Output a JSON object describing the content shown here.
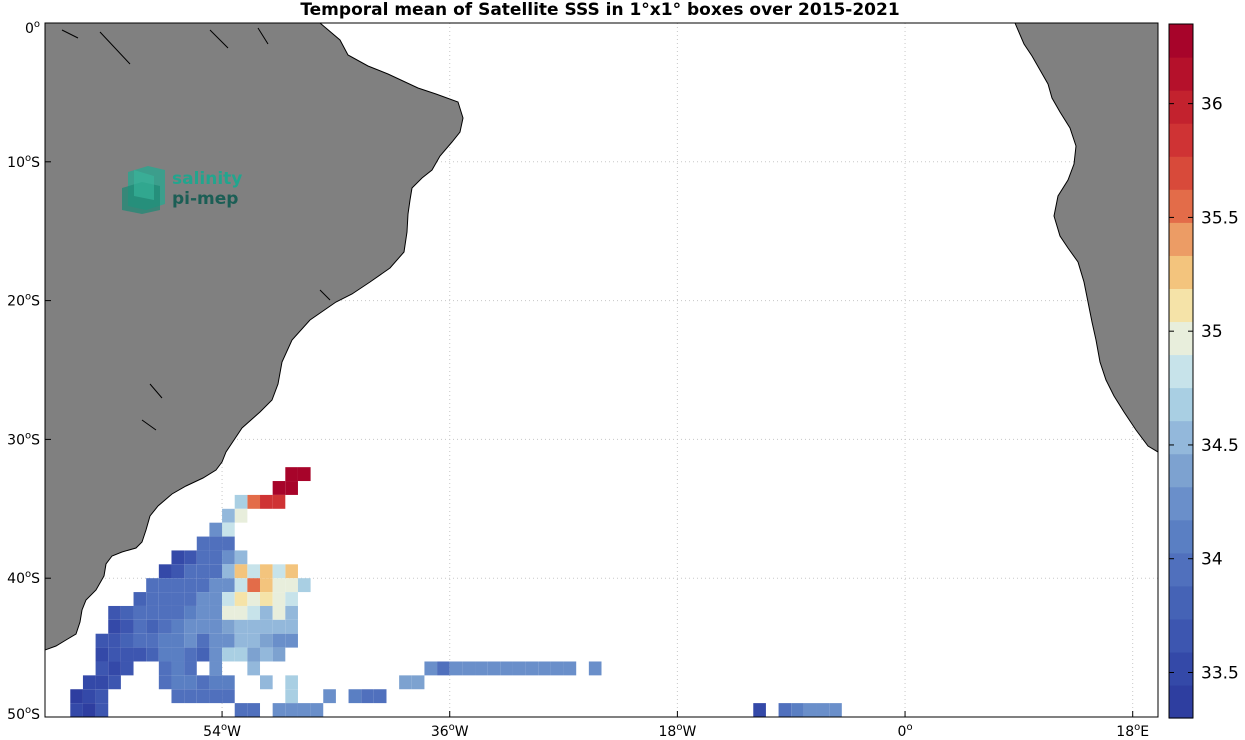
{
  "title": "Temporal mean of Satellite SSS in 1°x1° boxes over 2015-2021",
  "logo": {
    "line1": "salinity",
    "line2": "pi-mep",
    "color1": "#22a58e",
    "color2": "#1b5e55"
  },
  "colors": {
    "land": "#808080",
    "coast": "#000000",
    "ocean": "#ffffff",
    "grid": "#c8c8c8"
  },
  "axes": {
    "x_ticks": [
      {
        "lon": -54,
        "label": "54",
        "suffix": "W"
      },
      {
        "lon": -36,
        "label": "36",
        "suffix": "W"
      },
      {
        "lon": -18,
        "label": "18",
        "suffix": "W"
      },
      {
        "lon": 0,
        "label": "0",
        "suffix": ""
      },
      {
        "lon": 18,
        "label": "18",
        "suffix": "E"
      }
    ],
    "y_ticks": [
      {
        "lat": 0,
        "label": "0",
        "suffix": ""
      },
      {
        "lat": -10,
        "label": "10",
        "suffix": "S"
      },
      {
        "lat": -20,
        "label": "20",
        "suffix": "S"
      },
      {
        "lat": -30,
        "label": "30",
        "suffix": "S"
      },
      {
        "lat": -40,
        "label": "40",
        "suffix": "S"
      },
      {
        "lat": -50,
        "label": "50",
        "suffix": "S"
      }
    ],
    "lon_range": [
      -68,
      20
    ],
    "lat_range": [
      -50,
      0
    ]
  },
  "colorbar": {
    "min": 33.3,
    "max": 36.35,
    "ticks": [
      33.5,
      34,
      34.5,
      35,
      35.5,
      36
    ],
    "tick_labels": [
      "33.5",
      "34",
      "34.5",
      "35",
      "35.5",
      "36"
    ],
    "colors": [
      "#2e3ea0",
      "#3449a8",
      "#3d56b0",
      "#4563b6",
      "#5070bd",
      "#5a7fc3",
      "#6a8fca",
      "#7da2d0",
      "#93b8db",
      "#a9cfe3",
      "#c7e3ea",
      "#e8eedc",
      "#f5e3a8",
      "#f3c47d",
      "#ec9c65",
      "#e36c49",
      "#d84a3a",
      "#cf3334",
      "#c3222e",
      "#b5112b",
      "#a7042a"
    ]
  },
  "chart_data": {
    "type": "heatmap",
    "title": "Temporal mean of Satellite SSS in 1°x1° boxes over 2015-2021",
    "variable": "SSS",
    "resolution_deg": 1,
    "period": "2015-2021",
    "cells": [
      [
        -48,
        -32,
        36.3
      ],
      [
        -49,
        -32,
        36.3
      ],
      [
        -49,
        -33,
        36.3
      ],
      [
        -50,
        -33,
        36.3
      ],
      [
        -50,
        -34,
        35.8
      ],
      [
        -51,
        -34,
        35.8
      ],
      [
        -52,
        -34,
        35.6
      ],
      [
        -53,
        -34,
        34.7
      ],
      [
        -53,
        -35,
        35.0
      ],
      [
        -54,
        -35,
        34.5
      ],
      [
        -54,
        -36,
        34.8
      ],
      [
        -55,
        -36,
        34.2
      ],
      [
        -54,
        -37,
        34.0
      ],
      [
        -55,
        -37,
        34.0
      ],
      [
        -56,
        -37,
        33.9
      ],
      [
        -55,
        -38,
        34.0
      ],
      [
        -56,
        -38,
        33.9
      ],
      [
        -57,
        -38,
        33.6
      ],
      [
        -58,
        -38,
        33.5
      ],
      [
        -53,
        -38,
        34.6
      ],
      [
        -54,
        -38,
        34.3
      ],
      [
        -54,
        -39,
        34.6
      ],
      [
        -55,
        -39,
        34.0
      ],
      [
        -56,
        -39,
        34.0
      ],
      [
        -57,
        -39,
        33.9
      ],
      [
        -58,
        -39,
        33.6
      ],
      [
        -59,
        -39,
        33.5
      ],
      [
        -53,
        -39,
        35.2
      ],
      [
        -51,
        -39,
        35.2
      ],
      [
        -49,
        -39,
        35.2
      ],
      [
        -52,
        -39,
        34.8
      ],
      [
        -50,
        -39,
        34.8
      ],
      [
        -60,
        -40,
        34.0
      ],
      [
        -59,
        -40,
        33.9
      ],
      [
        -58,
        -40,
        33.9
      ],
      [
        -57,
        -40,
        33.9
      ],
      [
        -56,
        -40,
        34.0
      ],
      [
        -55,
        -40,
        34.2
      ],
      [
        -54,
        -40,
        34.3
      ],
      [
        -53,
        -40,
        34.8
      ],
      [
        -52,
        -40,
        35.6
      ],
      [
        -51,
        -40,
        35.2
      ],
      [
        -50,
        -40,
        34.9
      ],
      [
        -49,
        -40,
        34.9
      ],
      [
        -48,
        -40,
        34.7
      ],
      [
        -61,
        -41,
        33.8
      ],
      [
        -60,
        -41,
        33.9
      ],
      [
        -59,
        -41,
        34.0
      ],
      [
        -58,
        -41,
        33.9
      ],
      [
        -57,
        -41,
        34.0
      ],
      [
        -56,
        -41,
        34.2
      ],
      [
        -55,
        -41,
        34.3
      ],
      [
        -54,
        -41,
        34.8
      ],
      [
        -53,
        -41,
        35.1
      ],
      [
        -52,
        -41,
        35.0
      ],
      [
        -51,
        -41,
        35.1
      ],
      [
        -50,
        -41,
        34.9
      ],
      [
        -49,
        -41,
        34.8
      ],
      [
        -63,
        -42,
        33.7
      ],
      [
        -62,
        -42,
        33.8
      ],
      [
        -61,
        -42,
        33.9
      ],
      [
        -60,
        -42,
        34.0
      ],
      [
        -59,
        -42,
        34.0
      ],
      [
        -58,
        -42,
        34.0
      ],
      [
        -57,
        -42,
        34.1
      ],
      [
        -56,
        -42,
        34.2
      ],
      [
        -55,
        -42,
        34.3
      ],
      [
        -54,
        -42,
        35.0
      ],
      [
        -53,
        -42,
        35.0
      ],
      [
        -52,
        -42,
        34.8
      ],
      [
        -51,
        -42,
        34.6
      ],
      [
        -50,
        -42,
        34.9
      ],
      [
        -49,
        -42,
        34.5
      ],
      [
        -63,
        -43,
        33.5
      ],
      [
        -62,
        -43,
        33.7
      ],
      [
        -61,
        -43,
        33.9
      ],
      [
        -60,
        -43,
        33.8
      ],
      [
        -59,
        -43,
        34.0
      ],
      [
        -58,
        -43,
        34.1
      ],
      [
        -57,
        -43,
        34.2
      ],
      [
        -56,
        -43,
        34.2
      ],
      [
        -55,
        -43,
        34.3
      ],
      [
        -54,
        -43,
        34.4
      ],
      [
        -53,
        -43,
        34.5
      ],
      [
        -52,
        -43,
        34.5
      ],
      [
        -51,
        -43,
        34.6
      ],
      [
        -50,
        -43,
        34.6
      ],
      [
        -49,
        -43,
        34.6
      ],
      [
        -64,
        -44,
        33.6
      ],
      [
        -63,
        -44,
        33.7
      ],
      [
        -62,
        -44,
        33.8
      ],
      [
        -61,
        -44,
        33.9
      ],
      [
        -60,
        -44,
        34.0
      ],
      [
        -59,
        -44,
        34.1
      ],
      [
        -58,
        -44,
        34.1
      ],
      [
        -57,
        -44,
        34.2
      ],
      [
        -56,
        -44,
        34.0
      ],
      [
        -55,
        -44,
        34.3
      ],
      [
        -54,
        -44,
        34.3
      ],
      [
        -53,
        -44,
        34.6
      ],
      [
        -52,
        -44,
        34.6
      ],
      [
        -51,
        -44,
        34.4
      ],
      [
        -50,
        -44,
        34.2
      ],
      [
        -49,
        -44,
        34.2
      ],
      [
        -64,
        -45,
        33.5
      ],
      [
        -63,
        -45,
        33.6
      ],
      [
        -62,
        -45,
        33.7
      ],
      [
        -61,
        -45,
        33.7
      ],
      [
        -60,
        -45,
        33.8
      ],
      [
        -59,
        -45,
        34.1
      ],
      [
        -58,
        -45,
        34.1
      ],
      [
        -57,
        -45,
        34.0
      ],
      [
        -56,
        -45,
        33.8
      ],
      [
        -55,
        -45,
        34.2
      ],
      [
        -54,
        -45,
        34.7
      ],
      [
        -53,
        -45,
        34.7
      ],
      [
        -52,
        -45,
        34.4
      ],
      [
        -51,
        -45,
        34.5
      ],
      [
        -50,
        -45,
        34.4
      ],
      [
        -64,
        -46,
        33.6
      ],
      [
        -63,
        -46,
        33.5
      ],
      [
        -62,
        -46,
        33.6
      ],
      [
        -59,
        -46,
        34.0
      ],
      [
        -58,
        -46,
        34.1
      ],
      [
        -57,
        -46,
        33.9
      ],
      [
        -55,
        -46,
        34.3
      ],
      [
        -52,
        -46,
        34.5
      ],
      [
        -38,
        -46,
        34.2
      ],
      [
        -37,
        -46,
        34.0
      ],
      [
        -36,
        -46,
        34.2
      ],
      [
        -35,
        -46,
        34.3
      ],
      [
        -34,
        -46,
        34.3
      ],
      [
        -33,
        -46,
        34.3
      ],
      [
        -32,
        -46,
        34.3
      ],
      [
        -31,
        -46,
        34.3
      ],
      [
        -30,
        -46,
        34.3
      ],
      [
        -29,
        -46,
        34.3
      ],
      [
        -28,
        -46,
        34.3
      ],
      [
        -27,
        -46,
        34.2
      ],
      [
        -25,
        -46,
        34.3
      ],
      [
        -65,
        -47,
        33.5
      ],
      [
        -64,
        -47,
        33.5
      ],
      [
        -63,
        -47,
        33.7
      ],
      [
        -59,
        -47,
        33.9
      ],
      [
        -58,
        -47,
        34.1
      ],
      [
        -57,
        -47,
        34.1
      ],
      [
        -56,
        -47,
        34.0
      ],
      [
        -55,
        -47,
        34.1
      ],
      [
        -54,
        -47,
        34.1
      ],
      [
        -51,
        -47,
        34.5
      ],
      [
        -49,
        -47,
        34.7
      ],
      [
        -40,
        -47,
        34.4
      ],
      [
        -39,
        -47,
        34.4
      ],
      [
        -66,
        -48,
        33.4
      ],
      [
        -65,
        -48,
        33.5
      ],
      [
        -64,
        -48,
        33.6
      ],
      [
        -58,
        -48,
        33.9
      ],
      [
        -57,
        -48,
        33.9
      ],
      [
        -56,
        -48,
        33.9
      ],
      [
        -55,
        -48,
        33.9
      ],
      [
        -54,
        -48,
        33.9
      ],
      [
        -49,
        -48,
        34.7
      ],
      [
        -46,
        -48,
        34.3
      ],
      [
        -44,
        -48,
        34.1
      ],
      [
        -43,
        -48,
        34.0
      ],
      [
        -42,
        -48,
        34.0
      ],
      [
        -66,
        -49,
        33.5
      ],
      [
        -65,
        -49,
        33.4
      ],
      [
        -64,
        -49,
        33.6
      ],
      [
        -53,
        -49,
        34.0
      ],
      [
        -52,
        -49,
        34.0
      ],
      [
        -50,
        -49,
        34.2
      ],
      [
        -49,
        -49,
        34.2
      ],
      [
        -48,
        -49,
        34.2
      ],
      [
        -47,
        -49,
        34.2
      ],
      [
        -12,
        -49,
        33.5
      ],
      [
        -10,
        -49,
        34.0
      ],
      [
        -9,
        -49,
        34.1
      ],
      [
        -8,
        -49,
        34.2
      ],
      [
        -7,
        -49,
        34.2
      ],
      [
        -6,
        -49,
        34.3
      ]
    ]
  }
}
